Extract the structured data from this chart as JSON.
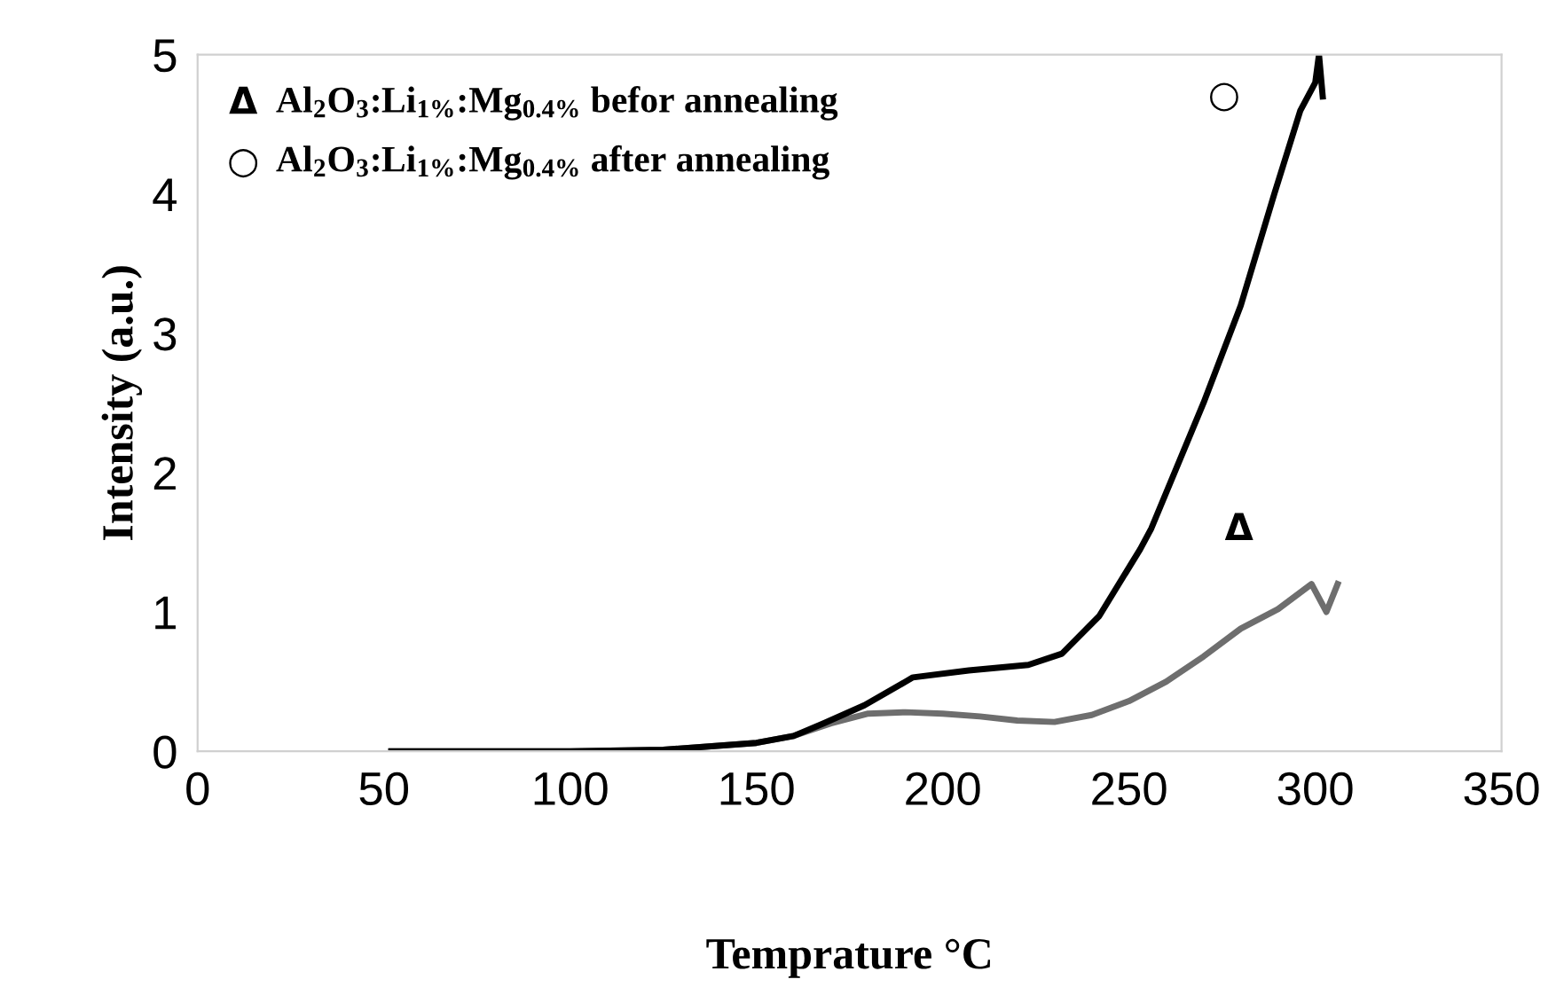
{
  "chart_data": {
    "type": "line",
    "xlabel": "Temprature °C",
    "ylabel": "Intensity (a.u.)",
    "xlim": [
      0,
      350
    ],
    "ylim": [
      0,
      5
    ],
    "xticks": [
      0,
      50,
      100,
      150,
      200,
      250,
      300,
      350
    ],
    "yticks": [
      0,
      1,
      2,
      3,
      4,
      5
    ],
    "grid": false,
    "legend": false,
    "line_style": "solid",
    "series": [
      {
        "name": "Al$_{2}$O$_{3}$:Li$_{1%}$:Mg$_{0.4%}$ befor annealing",
        "color": "#6e6e6e",
        "x": [
          52,
          75,
          100,
          125,
          150,
          160,
          170,
          180,
          190,
          200,
          210,
          220,
          230,
          240,
          250,
          260,
          270,
          280,
          290,
          299,
          303,
          306
        ],
        "values": [
          0,
          0,
          0,
          0.01,
          0.06,
          0.11,
          0.2,
          0.27,
          0.28,
          0.27,
          0.25,
          0.22,
          0.21,
          0.26,
          0.36,
          0.5,
          0.68,
          0.88,
          1.02,
          1.2,
          1.0,
          1.2
        ]
      },
      {
        "name": "Al$_{2}$O$_{3}$:Li$_{1%}$:Mg$_{0.4%}$ after annealing",
        "color": "#000000",
        "x": [
          52,
          75,
          100,
          125,
          150,
          160,
          168,
          179,
          192,
          207,
          223,
          232,
          242,
          253,
          256,
          270,
          280,
          289,
          296,
          300,
          301,
          302
        ],
        "values": [
          0,
          0,
          0,
          0.01,
          0.06,
          0.11,
          0.2,
          0.33,
          0.53,
          0.58,
          0.62,
          0.7,
          0.97,
          1.45,
          1.6,
          2.5,
          3.2,
          4.0,
          4.6,
          4.8,
          5.0,
          4.7
        ]
      }
    ],
    "annotations": [
      "Δ",
      "○"
    ]
  }
}
